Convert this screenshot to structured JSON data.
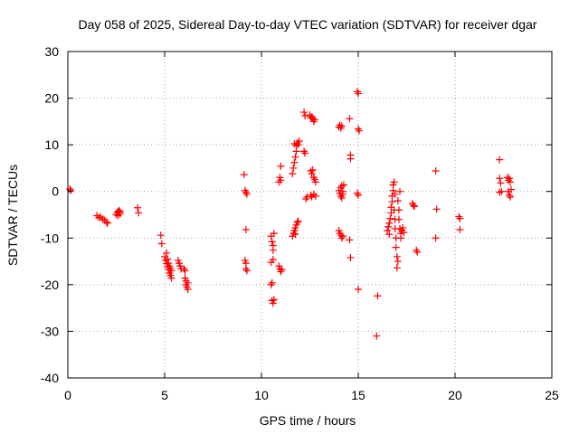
{
  "chart_data": {
    "type": "scatter",
    "title": "Day 058 of 2025, Sidereal Day-to-day VTEC variation (SDTVAR) for receiver dgar",
    "xlabel": "GPS time / hours",
    "ylabel": "SDTVAR / TECUs",
    "xlim": [
      0,
      25
    ],
    "ylim": [
      -40,
      30
    ],
    "xticks": [
      0,
      5,
      10,
      15,
      20,
      25
    ],
    "yticks": [
      -40,
      -30,
      -20,
      -10,
      0,
      10,
      20,
      30
    ],
    "xtick_labels": [
      "0",
      "5",
      "10",
      "15",
      "20",
      "25"
    ],
    "ytick_labels": [
      "-40",
      "-30",
      "-20",
      "-10",
      "0",
      "10",
      "20",
      "30"
    ],
    "grid": true,
    "marker": "+",
    "color": "#ff0000",
    "series": [
      {
        "name": "SDTVAR",
        "points": [
          [
            0.1,
            0.5
          ],
          [
            0.15,
            0.2
          ],
          [
            1.5,
            -5.2
          ],
          [
            1.6,
            -5.6
          ],
          [
            1.7,
            -5.5
          ],
          [
            1.8,
            -5.9
          ],
          [
            1.9,
            -6.2
          ],
          [
            2.0,
            -6.6
          ],
          [
            2.05,
            -6.8
          ],
          [
            2.5,
            -5.0
          ],
          [
            2.55,
            -4.6
          ],
          [
            2.6,
            -4.3
          ],
          [
            2.6,
            -5.2
          ],
          [
            2.65,
            -4.1
          ],
          [
            2.7,
            -4.8
          ],
          [
            2.7,
            -4.4
          ],
          [
            3.6,
            -3.5
          ],
          [
            3.65,
            -4.6
          ],
          [
            4.8,
            -9.4
          ],
          [
            4.85,
            -11.2
          ],
          [
            5.0,
            -14.0
          ],
          [
            5.05,
            -14.8
          ],
          [
            5.1,
            -15.5
          ],
          [
            5.1,
            -13.2
          ],
          [
            5.15,
            -16.2
          ],
          [
            5.15,
            -14.5
          ],
          [
            5.2,
            -16.8
          ],
          [
            5.2,
            -15.4
          ],
          [
            5.25,
            -17.5
          ],
          [
            5.25,
            -16.0
          ],
          [
            5.3,
            -18.0
          ],
          [
            5.3,
            -16.5
          ],
          [
            5.35,
            -17.0
          ],
          [
            5.35,
            -18.6
          ],
          [
            5.7,
            -14.8
          ],
          [
            5.75,
            -15.4
          ],
          [
            5.8,
            -16.0
          ],
          [
            5.85,
            -16.6
          ],
          [
            6.0,
            -16.6
          ],
          [
            6.05,
            -17.0
          ],
          [
            6.05,
            -18.6
          ],
          [
            6.1,
            -19.2
          ],
          [
            6.1,
            -20.0
          ],
          [
            6.15,
            -20.5
          ],
          [
            6.2,
            -21.0
          ],
          [
            6.2,
            -19.6
          ],
          [
            9.1,
            3.6
          ],
          [
            9.15,
            0.2
          ],
          [
            9.2,
            -0.2
          ],
          [
            9.25,
            -0.6
          ],
          [
            9.2,
            -8.2
          ],
          [
            9.15,
            -14.8
          ],
          [
            9.2,
            -15.4
          ],
          [
            9.2,
            -16.6
          ],
          [
            9.25,
            -17.0
          ],
          [
            10.5,
            -9.6
          ],
          [
            10.55,
            -10.8
          ],
          [
            10.6,
            -11.6
          ],
          [
            10.6,
            -12.6
          ],
          [
            10.65,
            -9.0
          ],
          [
            10.5,
            -15.2
          ],
          [
            10.6,
            -14.6
          ],
          [
            10.5,
            -20.0
          ],
          [
            10.55,
            -19.6
          ],
          [
            10.55,
            -23.4
          ],
          [
            10.6,
            -24.0
          ],
          [
            10.65,
            -23.2
          ],
          [
            10.9,
            2.0
          ],
          [
            10.95,
            3.0
          ],
          [
            11.0,
            5.4
          ],
          [
            11.0,
            2.4
          ],
          [
            10.9,
            -16.0
          ],
          [
            10.95,
            -16.6
          ],
          [
            11.0,
            -17.2
          ],
          [
            11.05,
            -16.8
          ],
          [
            11.6,
            3.8
          ],
          [
            11.65,
            5.0
          ],
          [
            11.7,
            6.2
          ],
          [
            11.75,
            7.4
          ],
          [
            11.8,
            8.6
          ],
          [
            11.8,
            9.8
          ],
          [
            11.85,
            10.4
          ],
          [
            11.9,
            10.0
          ],
          [
            11.95,
            10.8
          ],
          [
            11.7,
            10.2
          ],
          [
            11.6,
            -9.6
          ],
          [
            11.65,
            -9.0
          ],
          [
            11.7,
            -8.4
          ],
          [
            11.75,
            -7.8
          ],
          [
            11.8,
            -7.2
          ],
          [
            11.85,
            -6.6
          ],
          [
            11.9,
            -6.4
          ],
          [
            11.75,
            -9.2
          ],
          [
            12.2,
            8.6
          ],
          [
            12.25,
            8.2
          ],
          [
            12.2,
            17.0
          ],
          [
            12.25,
            16.2
          ],
          [
            12.3,
            -1.6
          ],
          [
            12.35,
            -1.2
          ],
          [
            12.5,
            16.4
          ],
          [
            12.55,
            15.8
          ],
          [
            12.6,
            16.0
          ],
          [
            12.65,
            15.6
          ],
          [
            12.7,
            15.0
          ],
          [
            12.75,
            15.4
          ],
          [
            12.55,
            4.4
          ],
          [
            12.6,
            3.8
          ],
          [
            12.65,
            4.6
          ],
          [
            12.7,
            3.0
          ],
          [
            12.75,
            2.6
          ],
          [
            12.8,
            2.0
          ],
          [
            12.55,
            -0.8
          ],
          [
            12.6,
            -1.2
          ],
          [
            12.7,
            -0.6
          ],
          [
            12.8,
            -1.0
          ],
          [
            14.0,
            13.8
          ],
          [
            14.05,
            14.2
          ],
          [
            14.1,
            13.6
          ],
          [
            14.15,
            14.0
          ],
          [
            14.0,
            0.2
          ],
          [
            14.05,
            -0.4
          ],
          [
            14.1,
            0.8
          ],
          [
            14.1,
            -1.0
          ],
          [
            14.15,
            1.2
          ],
          [
            14.15,
            -1.4
          ],
          [
            14.2,
            0.0
          ],
          [
            14.2,
            -0.6
          ],
          [
            14.25,
            1.4
          ],
          [
            14.0,
            -8.4
          ],
          [
            14.05,
            -9.0
          ],
          [
            14.1,
            -9.4
          ],
          [
            14.15,
            -10.0
          ],
          [
            14.2,
            -9.6
          ],
          [
            14.55,
            15.6
          ],
          [
            14.6,
            7.8
          ],
          [
            14.6,
            7.0
          ],
          [
            14.55,
            -10.4
          ],
          [
            14.6,
            -14.2
          ],
          [
            14.95,
            21.4
          ],
          [
            15.0,
            21.0
          ],
          [
            15.0,
            13.4
          ],
          [
            15.05,
            13.0
          ],
          [
            14.95,
            -0.4
          ],
          [
            15.0,
            -0.8
          ],
          [
            15.0,
            -21.0
          ],
          [
            16.0,
            -22.4
          ],
          [
            15.95,
            -31.0
          ],
          [
            16.5,
            -8.4
          ],
          [
            16.55,
            -7.6
          ],
          [
            16.6,
            -6.8
          ],
          [
            16.6,
            -9.2
          ],
          [
            16.65,
            -5.8
          ],
          [
            16.7,
            -4.6
          ],
          [
            16.7,
            -3.4
          ],
          [
            16.75,
            -2.2
          ],
          [
            16.75,
            -1.0
          ],
          [
            16.8,
            0.2
          ],
          [
            16.8,
            1.4
          ],
          [
            16.85,
            2.0
          ],
          [
            16.9,
            -0.6
          ],
          [
            16.85,
            -4.0
          ],
          [
            16.9,
            -6.0
          ],
          [
            16.9,
            -8.0
          ],
          [
            16.95,
            -10.0
          ],
          [
            16.95,
            -12.0
          ],
          [
            17.0,
            -14.0
          ],
          [
            17.0,
            -16.4
          ],
          [
            17.05,
            -15.0
          ],
          [
            17.05,
            -2.0
          ],
          [
            17.1,
            -4.0
          ],
          [
            17.1,
            -6.0
          ],
          [
            17.15,
            -8.0
          ],
          [
            17.15,
            0.0
          ],
          [
            17.2,
            -10.0
          ],
          [
            17.2,
            -9.0
          ],
          [
            17.25,
            -8.4
          ],
          [
            17.3,
            -7.8
          ],
          [
            17.35,
            -8.8
          ],
          [
            17.8,
            -2.6
          ],
          [
            17.85,
            -3.0
          ],
          [
            17.9,
            -3.2
          ],
          [
            18.0,
            -12.6
          ],
          [
            18.05,
            -13.0
          ],
          [
            19.0,
            4.4
          ],
          [
            19.05,
            -3.8
          ],
          [
            19.0,
            -10.0
          ],
          [
            20.2,
            -5.4
          ],
          [
            20.25,
            -5.8
          ],
          [
            20.25,
            -8.2
          ],
          [
            22.3,
            6.8
          ],
          [
            22.3,
            2.8
          ],
          [
            22.35,
            1.8
          ],
          [
            22.3,
            -0.2
          ],
          [
            22.4,
            0.0
          ],
          [
            22.7,
            3.0
          ],
          [
            22.75,
            2.4
          ],
          [
            22.8,
            2.8
          ],
          [
            22.85,
            2.0
          ],
          [
            22.75,
            0.0
          ],
          [
            22.8,
            -0.8
          ],
          [
            22.85,
            -1.2
          ],
          [
            22.9,
            0.4
          ]
        ]
      }
    ]
  }
}
